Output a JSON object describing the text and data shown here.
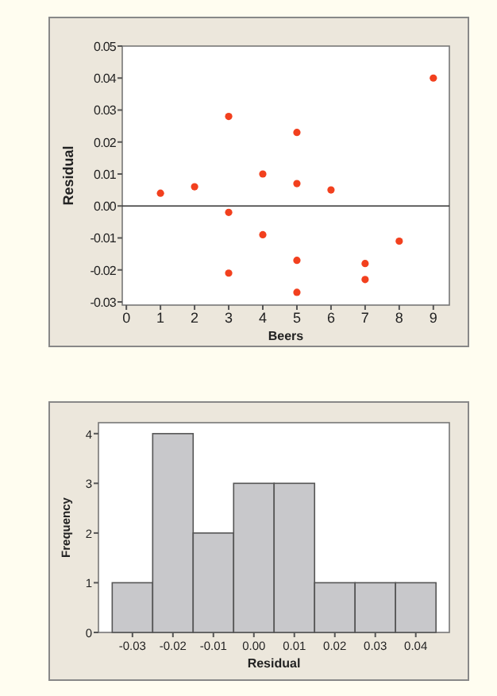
{
  "chart_data": [
    {
      "type": "scatter",
      "xlabel": "Beers",
      "ylabel": "Residual",
      "x": [
        1,
        2,
        3,
        3,
        3,
        4,
        4,
        5,
        5,
        5,
        5,
        6,
        7,
        7,
        8,
        9
      ],
      "series": [
        {
          "color": "#f2401e",
          "values": [
            0.004,
            0.006,
            0.028,
            -0.002,
            -0.021,
            0.01,
            -0.009,
            0.023,
            0.007,
            -0.017,
            -0.027,
            0.005,
            -0.018,
            -0.023,
            -0.011,
            0.04
          ]
        }
      ],
      "marker": "circle",
      "xlim": [
        -0.12,
        9.47
      ],
      "xticks": [
        0,
        1,
        2,
        3,
        4,
        5,
        6,
        7,
        8,
        9
      ],
      "ylim": [
        -0.031,
        0.05
      ],
      "yticks": [
        {
          "value": -0.03,
          "label": "-0.03"
        },
        {
          "value": -0.02,
          "label": "-0.02"
        },
        {
          "value": -0.01,
          "label": "-0.01"
        },
        {
          "value": 0,
          "label": "0.00"
        },
        0.01,
        0.02,
        0.03,
        0.04,
        0.05
      ],
      "ref_lines": [
        {
          "axis": "y",
          "value": 0,
          "color": "#333333"
        }
      ]
    },
    {
      "type": "histogram",
      "xlabel": "Residual",
      "ylabel": "Frequency",
      "bins": [
        -0.035,
        -0.025,
        -0.015,
        -0.005,
        0.005,
        0.015,
        0.025,
        0.035,
        0.045
      ],
      "values": [
        1,
        4,
        2,
        3,
        3,
        1,
        1,
        1
      ],
      "color": "#c8c8cb",
      "xlim": [
        -0.0384,
        0.0483
      ],
      "xticks": [
        -0.03,
        -0.02,
        -0.01,
        {
          "value": 0,
          "label": "0.00"
        },
        0.01,
        0.02,
        0.03,
        0.04
      ],
      "ylim": [
        0,
        4.22
      ],
      "yticks": [
        0,
        1,
        2,
        3,
        4
      ]
    }
  ]
}
